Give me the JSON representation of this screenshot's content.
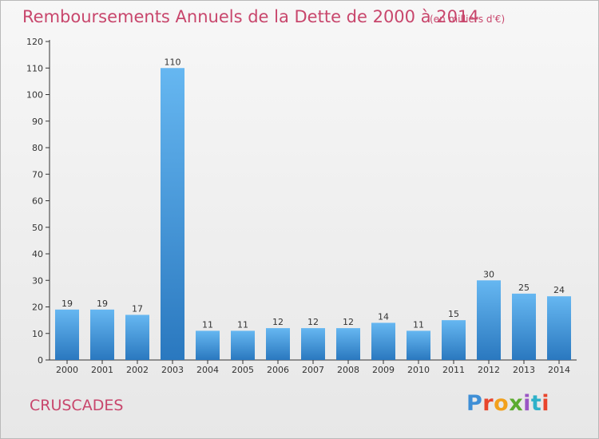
{
  "title": "Remboursements Annuels de la Dette de 2000 à 2014",
  "subtitle": "(en milliers d'€)",
  "commune": "CRUSCADES",
  "brand": {
    "text": "Proxiti",
    "letter_colors": [
      "#3f8fd6",
      "#e8452c",
      "#f2a01c",
      "#5bab2f",
      "#9a55c4",
      "#2eb1c9",
      "#e8452c"
    ]
  },
  "colors": {
    "title": "#c8466c",
    "bar_light": "#66b7f1",
    "bar_dark": "#2a78bf",
    "axis": "#333333"
  },
  "chart_data": {
    "type": "bar",
    "title": "Remboursements Annuels de la Dette de 2000 à 2014",
    "subtitle": "(en milliers d'€)",
    "xlabel": "",
    "ylabel": "",
    "categories": [
      "2000",
      "2001",
      "2002",
      "2003",
      "2004",
      "2005",
      "2006",
      "2007",
      "2008",
      "2009",
      "2010",
      "2011",
      "2012",
      "2013",
      "2014"
    ],
    "values": [
      19,
      19,
      17,
      110,
      11,
      11,
      12,
      12,
      12,
      14,
      11,
      15,
      30,
      25,
      24
    ],
    "ylim": [
      0,
      120
    ],
    "yticks": [
      0,
      10,
      20,
      30,
      40,
      50,
      60,
      70,
      80,
      90,
      100,
      110,
      120
    ],
    "grid": false,
    "legend": "none"
  }
}
